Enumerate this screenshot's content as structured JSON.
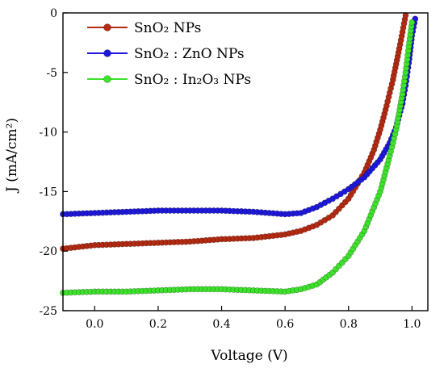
{
  "chart_data": {
    "type": "line",
    "xlabel": "Voltage (V)",
    "ylabel": "J (mA/cm²)",
    "xlim": [
      -0.1,
      1.05
    ],
    "ylim": [
      -25,
      0
    ],
    "xticks": [
      "0.0",
      "0.2",
      "0.4",
      "0.6",
      "0.8",
      "1.0"
    ],
    "yticks": [
      "0",
      "-5",
      "-10",
      "-15",
      "-20",
      "-25"
    ],
    "grid": false,
    "legend_position": "top-left",
    "series": [
      {
        "name": "SnO₂ NPs",
        "color": "#b22a12",
        "x": [
          -0.1,
          0.0,
          0.1,
          0.2,
          0.3,
          0.4,
          0.5,
          0.6,
          0.65,
          0.7,
          0.75,
          0.8,
          0.85,
          0.88,
          0.9,
          0.92,
          0.94,
          0.96,
          0.97,
          0.98
        ],
        "y": [
          -19.8,
          -19.5,
          -19.4,
          -19.3,
          -19.2,
          -19.0,
          -18.9,
          -18.6,
          -18.3,
          -17.8,
          -17.0,
          -15.6,
          -13.4,
          -11.5,
          -9.8,
          -7.8,
          -5.6,
          -3.0,
          -1.6,
          -0.2
        ]
      },
      {
        "name": "SnO₂ : ZnO NPs",
        "color": "#1e18d8",
        "x": [
          -0.1,
          0.0,
          0.1,
          0.2,
          0.3,
          0.4,
          0.5,
          0.6,
          0.65,
          0.7,
          0.75,
          0.8,
          0.85,
          0.9,
          0.93,
          0.95,
          0.97,
          0.98,
          0.99,
          1.0,
          1.01
        ],
        "y": [
          -16.9,
          -16.8,
          -16.7,
          -16.6,
          -16.6,
          -16.6,
          -16.7,
          -16.9,
          -16.8,
          -16.3,
          -15.6,
          -14.8,
          -13.8,
          -12.3,
          -10.9,
          -9.6,
          -7.6,
          -6.1,
          -4.2,
          -1.9,
          -0.5
        ]
      },
      {
        "name": "SnO₂ : In₂O₃ NPs",
        "color": "#3ee22c",
        "x": [
          -0.1,
          0.0,
          0.1,
          0.2,
          0.3,
          0.4,
          0.5,
          0.6,
          0.65,
          0.7,
          0.75,
          0.8,
          0.85,
          0.9,
          0.93,
          0.95,
          0.97,
          0.98,
          0.99,
          1.0
        ],
        "y": [
          -23.5,
          -23.4,
          -23.4,
          -23.3,
          -23.2,
          -23.2,
          -23.3,
          -23.4,
          -23.2,
          -22.8,
          -21.8,
          -20.4,
          -18.3,
          -15.0,
          -12.0,
          -9.8,
          -6.8,
          -5.0,
          -2.8,
          -0.8
        ]
      }
    ]
  }
}
